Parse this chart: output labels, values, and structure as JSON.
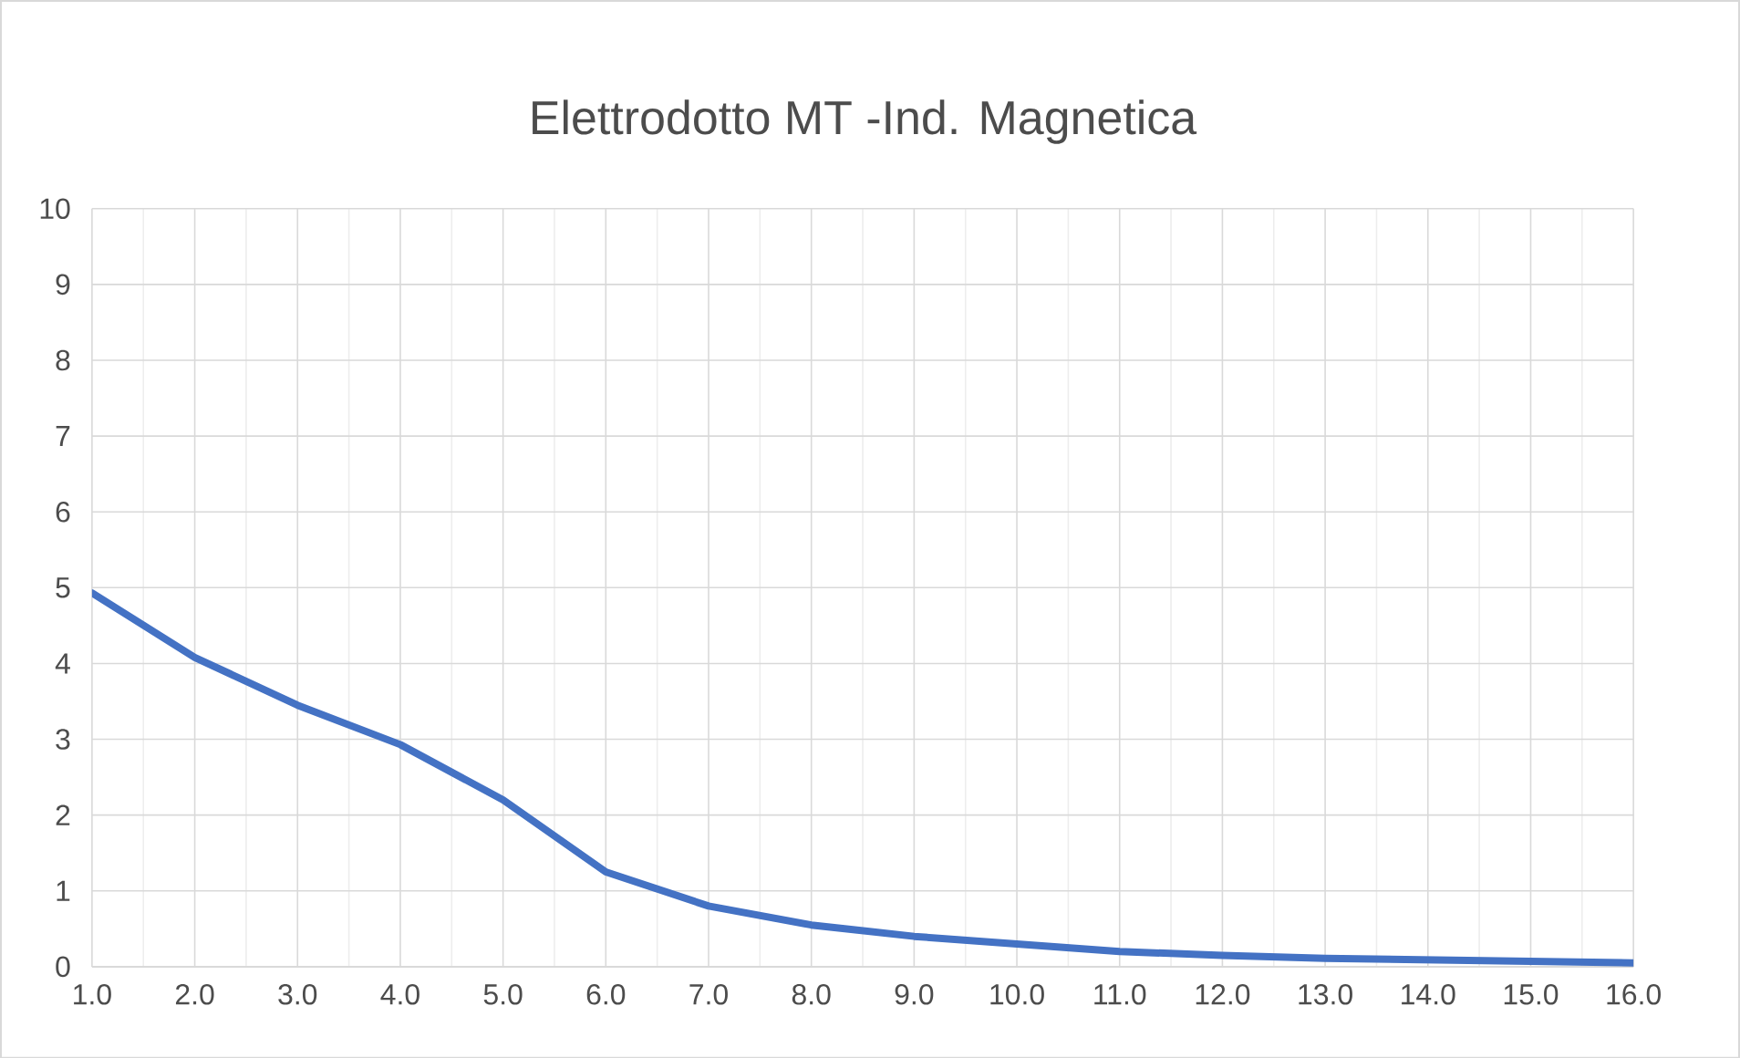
{
  "chart_data": {
    "type": "line",
    "title": "Elettrodotto MT -Ind. Magnetica",
    "categories": [
      "1.0",
      "2.0",
      "3.0",
      "4.0",
      "5.0",
      "6.0",
      "7.0",
      "8.0",
      "9.0",
      "10.0",
      "11.0",
      "12.0",
      "13.0",
      "14.0",
      "15.0",
      "16.0"
    ],
    "series": [
      {
        "color": "#4472c4",
        "values": [
          4.93,
          4.08,
          3.45,
          2.93,
          2.2,
          1.25,
          0.8,
          0.55,
          0.4,
          0.3,
          0.2,
          0.15,
          0.11,
          0.09,
          0.07,
          0.05
        ]
      }
    ],
    "ylim": [
      0,
      10
    ],
    "yticks": [
      0,
      1,
      2,
      3,
      4,
      5,
      6,
      7,
      8,
      9,
      10
    ],
    "grid": true,
    "marker": "none",
    "line_style": "solid"
  }
}
